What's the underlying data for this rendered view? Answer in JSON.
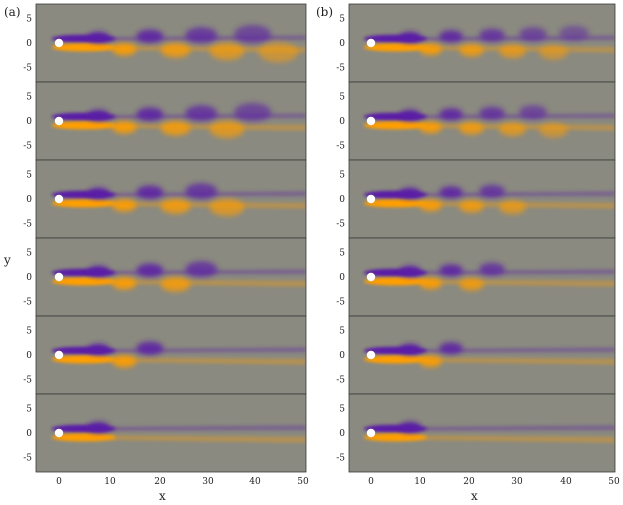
{
  "figure": {
    "panel_labels": [
      "(a)",
      "(b)"
    ],
    "x_axis_label": "x",
    "y_axis_label": "y",
    "x_ticks": [
      "0",
      "10",
      "20",
      "30",
      "40",
      "50"
    ],
    "y_ticks": [
      "5",
      "0",
      "-5"
    ]
  },
  "colors": {
    "background_field": "#8a8a80",
    "positive_vorticity": "#ff9e00",
    "negative_vorticity": "#5a1fa6",
    "cylinder": "#ffffff"
  },
  "panels": {
    "left_vortex_reach": [
      0.92,
      0.78,
      0.64,
      0.5,
      0.36,
      0.14
    ],
    "right_vortex_reach": [
      0.82,
      0.72,
      0.58,
      0.44,
      0.3,
      0.1
    ]
  }
}
